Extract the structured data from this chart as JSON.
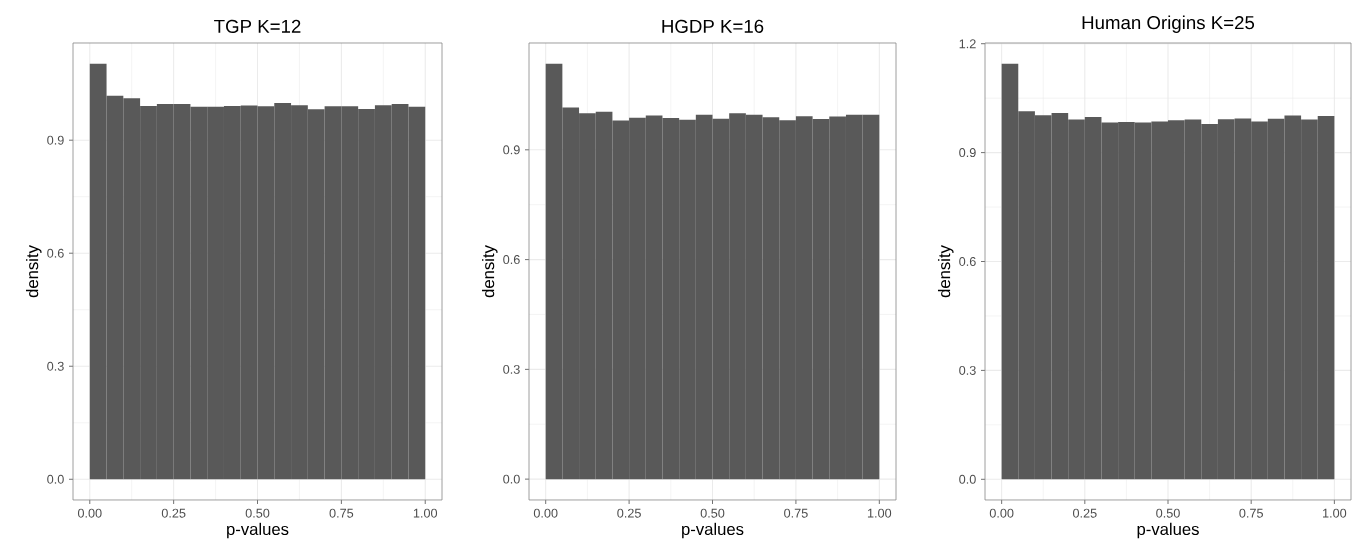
{
  "chart_data": [
    {
      "type": "histogram",
      "title": "TGP K=12",
      "xlabel": "p-values",
      "ylabel": "density",
      "color": "#595959",
      "grid": true,
      "bins": [
        0,
        0.05,
        0.1,
        0.15,
        0.2,
        0.25,
        0.3,
        0.35,
        0.4,
        0.45,
        0.5,
        0.55,
        0.6,
        0.65,
        0.7,
        0.75,
        0.8,
        0.85,
        0.9,
        0.95,
        1.0
      ],
      "values": [
        1.103,
        1.018,
        1.011,
        0.991,
        0.996,
        0.996,
        0.989,
        0.989,
        0.991,
        0.992,
        0.99,
        0.999,
        0.993,
        0.982,
        0.99,
        0.99,
        0.983,
        0.993,
        0.996,
        0.989
      ],
      "xlim": [
        -0.05,
        1.05
      ],
      "ylim": [
        -0.055,
        1.158
      ],
      "xticks": [
        {
          "value": 0,
          "label": "0.00"
        },
        {
          "value": 0.25,
          "label": "0.25"
        },
        {
          "value": 0.5,
          "label": "0.50"
        },
        {
          "value": 0.75,
          "label": "0.75"
        },
        {
          "value": 1,
          "label": "1.00"
        }
      ],
      "yticks": [
        {
          "value": 0,
          "label": "0.0"
        },
        {
          "value": 0.3,
          "label": "0.3"
        },
        {
          "value": 0.6,
          "label": "0.6"
        },
        {
          "value": 0.9,
          "label": "0.9"
        }
      ]
    },
    {
      "type": "histogram",
      "title": "HGDP K=16",
      "xlabel": "p-values",
      "ylabel": "density",
      "color": "#595959",
      "grid": true,
      "bins": [
        0,
        0.05,
        0.1,
        0.15,
        0.2,
        0.25,
        0.3,
        0.35,
        0.4,
        0.45,
        0.5,
        0.55,
        0.6,
        0.65,
        0.7,
        0.75,
        0.8,
        0.85,
        0.9,
        0.95,
        1.0
      ],
      "values": [
        1.135,
        1.016,
        1.0,
        1.004,
        0.98,
        0.988,
        0.994,
        0.987,
        0.982,
        0.996,
        0.985,
        1.0,
        0.996,
        0.989,
        0.981,
        0.992,
        0.984,
        0.991,
        0.996,
        0.996
      ],
      "xlim": [
        -0.05,
        1.05
      ],
      "ylim": [
        -0.057,
        1.192
      ],
      "xticks": [
        {
          "value": 0,
          "label": "0.00"
        },
        {
          "value": 0.25,
          "label": "0.25"
        },
        {
          "value": 0.5,
          "label": "0.50"
        },
        {
          "value": 0.75,
          "label": "0.75"
        },
        {
          "value": 1,
          "label": "1.00"
        }
      ],
      "yticks": [
        {
          "value": 0,
          "label": "0.0"
        },
        {
          "value": 0.3,
          "label": "0.3"
        },
        {
          "value": 0.6,
          "label": "0.6"
        },
        {
          "value": 0.9,
          "label": "0.9"
        }
      ]
    },
    {
      "type": "histogram",
      "title": "Human Origins K=25",
      "xlabel": "p-values",
      "ylabel": "density",
      "color": "#595959",
      "grid": true,
      "bins": [
        0,
        0.05,
        0.1,
        0.15,
        0.2,
        0.25,
        0.3,
        0.35,
        0.4,
        0.45,
        0.5,
        0.55,
        0.6,
        0.65,
        0.7,
        0.75,
        0.8,
        0.85,
        0.9,
        0.95,
        1.0
      ],
      "values": [
        1.145,
        1.014,
        1.003,
        1.009,
        0.991,
        0.998,
        0.983,
        0.984,
        0.983,
        0.986,
        0.989,
        0.991,
        0.979,
        0.992,
        0.994,
        0.986,
        0.993,
        1.002,
        0.991,
        1.001
      ],
      "xlim": [
        -0.05,
        1.05
      ],
      "ylim": [
        -0.057,
        1.202
      ],
      "xticks": [
        {
          "value": 0,
          "label": "0.00"
        },
        {
          "value": 0.25,
          "label": "0.25"
        },
        {
          "value": 0.5,
          "label": "0.50"
        },
        {
          "value": 0.75,
          "label": "0.75"
        },
        {
          "value": 1,
          "label": "1.00"
        }
      ],
      "yticks": [
        {
          "value": 0,
          "label": "0.0"
        },
        {
          "value": 0.3,
          "label": "0.3"
        },
        {
          "value": 0.6,
          "label": "0.6"
        },
        {
          "value": 0.9,
          "label": "0.9"
        },
        {
          "value": 1.2,
          "label": "1.2"
        }
      ]
    }
  ]
}
